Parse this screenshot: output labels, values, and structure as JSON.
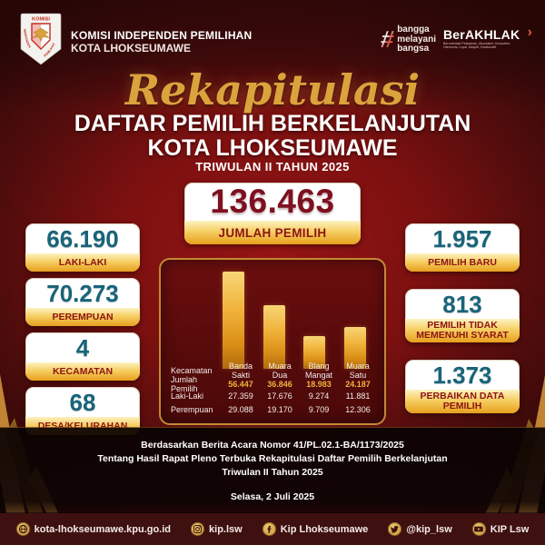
{
  "colors": {
    "bg_center": "#951414",
    "bg_edge": "#2f0707",
    "gold": "#e3a62e",
    "gold_light": "#f9df92",
    "teal_number": "#19647a",
    "maroon_label": "#8c1414",
    "panel_bg": "#5c0b0b",
    "panel_border": "#c08a33",
    "table_gold": "#f2b33d",
    "footer_bg": "#3f1010"
  },
  "header": {
    "logo": {
      "arc_top": "KOMISI",
      "arc_side": "INDEPENDEN PEMILIHAN"
    },
    "org_line1": "KOMISI INDEPENDEN PEMILIHAN",
    "org_line2": "KOTA LHOKSEUMAWE",
    "hashtag_words": [
      "bangga",
      "melayani",
      "bangsa"
    ],
    "hashtag_symbol": "#",
    "berakhlak": "BerAKHLAK",
    "berakhlak_tagline": "Berorientasi Pelayanan, Akuntabel, Kompeten, Harmonis, Loyal, Adaptif, Kolaboratif",
    "berakhlak_chevron": "›"
  },
  "title": {
    "script": "Rekapitulasi",
    "line1": "DAFTAR PEMILIH BERKELANJUTAN",
    "line2": "KOTA LHOKSEUMAWE",
    "line3": "TRIWULAN II TAHUN 2025"
  },
  "main_stat": {
    "value": "136.463",
    "label": "JUMLAH PEMILIH"
  },
  "left_stats": [
    {
      "value": "66.190",
      "label": "LAKI-LAKI"
    },
    {
      "value": "70.273",
      "label": "PEREMPUAN"
    },
    {
      "value": "4",
      "label": "KECAMATAN"
    },
    {
      "value": "68",
      "label": "DESA/KELURAHAN"
    }
  ],
  "right_stats": [
    {
      "value": "1.957",
      "label": "PEMILIH BARU"
    },
    {
      "value": "813",
      "label": "PEMILIH TIDAK MEMENUHI SYARAT"
    },
    {
      "value": "1.373",
      "label": "PERBAIKAN DATA PEMILIH"
    }
  ],
  "chart_data": {
    "type": "bar",
    "categories": [
      "Banda Sakti",
      "Muara Dua",
      "Blang Mangat",
      "Muara Satu"
    ],
    "values": [
      56447,
      36846,
      18983,
      24187
    ],
    "ylim": [
      0,
      56447
    ],
    "grid": false,
    "legend": false,
    "bar_color": "#f0b23a",
    "table": {
      "row_headers": [
        "Kecamatan",
        "Jumlah Pemilih",
        "Laki-Laki",
        "Perempuan"
      ],
      "rows": [
        [
          "Banda Sakti",
          "Muara Dua",
          "Blang Mangat",
          "Muara Satu"
        ],
        [
          "56.447",
          "36.846",
          "18.983",
          "24.187"
        ],
        [
          "27.359",
          "17.676",
          "9.274",
          "11.881"
        ],
        [
          "29.088",
          "19.170",
          "9.709",
          "12.306"
        ]
      ],
      "highlight_row": 1
    }
  },
  "notes": {
    "line1": "Berdasarkan Berita Acara Nomor 41/PL.02.1-BA/1173/2025",
    "line2": "Tentang Hasil Rapat Pleno Terbuka Rekapitulasi Daftar Pemilih Berkelanjutan",
    "line3": "Triwulan II Tahun 2025",
    "date": "Selasa, 2 Juli 2025"
  },
  "footer": {
    "items": [
      {
        "icon": "globe-icon",
        "label": "kota-lhokseumawe.kpu.go.id"
      },
      {
        "icon": "instagram-icon",
        "label": "kip.lsw"
      },
      {
        "icon": "facebook-icon",
        "label": "Kip Lhokseumawe"
      },
      {
        "icon": "twitter-icon",
        "label": "@kip_lsw"
      },
      {
        "icon": "youtube-icon",
        "label": "KIP Lsw"
      }
    ]
  }
}
